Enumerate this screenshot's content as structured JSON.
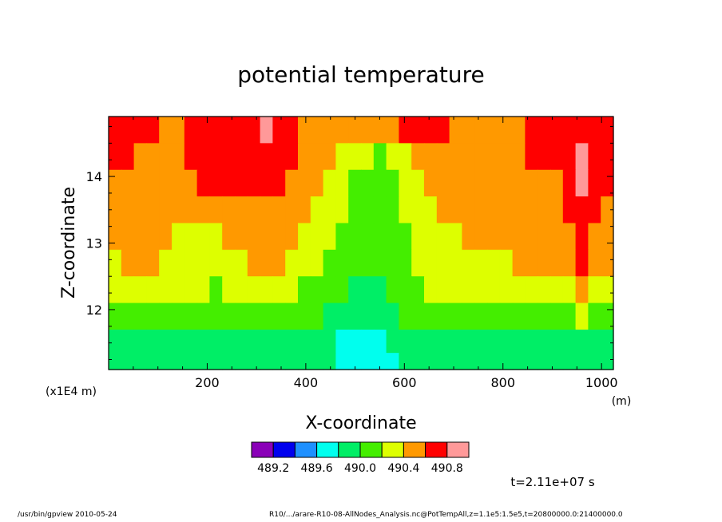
{
  "chart_data": {
    "type": "heatmap",
    "title": "potential temperature",
    "xlabel": "X-coordinate",
    "ylabel": "Z-coordinate",
    "x_unit": "(m)",
    "y_unit": "(x1E4 m)",
    "xlim": [
      0,
      1024
    ],
    "ylim": [
      11.1,
      14.9
    ],
    "x_ticks": [
      "200",
      "400",
      "600",
      "800",
      "1000"
    ],
    "y_ticks": [
      "12",
      "13",
      "14"
    ],
    "colorbar": {
      "levels": [
        {
          "color": "#8a00b8"
        },
        {
          "color": "#0000ee"
        },
        {
          "color": "#1e90ff"
        },
        {
          "color": "#00ffee"
        },
        {
          "color": "#00ee66"
        },
        {
          "color": "#44ee00"
        },
        {
          "color": "#ddff00"
        },
        {
          "color": "#ff9900"
        },
        {
          "color": "#ff0000"
        },
        {
          "color": "#ff9999"
        }
      ],
      "labels": [
        "489.2",
        "489.6",
        "490.0",
        "490.4",
        "490.8"
      ]
    },
    "approx_field_rows": [
      {
        "z": 14.7,
        "levels": [
          8,
          8,
          8,
          8,
          7,
          7,
          8,
          8,
          8,
          8,
          8,
          8,
          9,
          8,
          8,
          7,
          7,
          7,
          7,
          7,
          7,
          7,
          7,
          8,
          8,
          8,
          8,
          7,
          7,
          7,
          7,
          7,
          7,
          8,
          8,
          8,
          8,
          8,
          8,
          8
        ]
      },
      {
        "z": 14.3,
        "levels": [
          8,
          8,
          7,
          7,
          7,
          7,
          8,
          8,
          8,
          8,
          8,
          8,
          8,
          8,
          8,
          7,
          7,
          7,
          6,
          6,
          6,
          5,
          6,
          6,
          7,
          7,
          7,
          7,
          7,
          7,
          7,
          7,
          7,
          8,
          8,
          8,
          8,
          9,
          8,
          8
        ]
      },
      {
        "z": 13.9,
        "levels": [
          7,
          7,
          7,
          7,
          7,
          7,
          7,
          8,
          8,
          8,
          8,
          8,
          8,
          8,
          7,
          7,
          7,
          6,
          6,
          5,
          5,
          5,
          5,
          6,
          6,
          7,
          7,
          7,
          7,
          7,
          7,
          7,
          7,
          7,
          7,
          7,
          8,
          9,
          8,
          8
        ]
      },
      {
        "z": 13.5,
        "levels": [
          7,
          7,
          7,
          7,
          7,
          7,
          7,
          7,
          7,
          7,
          7,
          7,
          7,
          7,
          7,
          7,
          6,
          6,
          6,
          5,
          5,
          5,
          5,
          6,
          6,
          6,
          7,
          7,
          7,
          7,
          7,
          7,
          7,
          7,
          7,
          7,
          8,
          8,
          8,
          7
        ]
      },
      {
        "z": 13.1,
        "levels": [
          7,
          7,
          7,
          7,
          7,
          6,
          6,
          6,
          6,
          7,
          7,
          7,
          7,
          7,
          7,
          6,
          6,
          6,
          5,
          5,
          5,
          5,
          5,
          5,
          6,
          6,
          6,
          6,
          7,
          7,
          7,
          7,
          7,
          7,
          7,
          7,
          7,
          8,
          7,
          7
        ]
      },
      {
        "z": 12.7,
        "levels": [
          6,
          7,
          7,
          7,
          6,
          6,
          6,
          6,
          6,
          6,
          6,
          7,
          7,
          7,
          6,
          6,
          6,
          5,
          5,
          5,
          5,
          5,
          5,
          5,
          6,
          6,
          6,
          6,
          6,
          6,
          6,
          6,
          7,
          7,
          7,
          7,
          7,
          8,
          7,
          7
        ]
      },
      {
        "z": 12.3,
        "levels": [
          6,
          6,
          6,
          6,
          6,
          6,
          6,
          6,
          5,
          6,
          6,
          6,
          6,
          6,
          6,
          5,
          5,
          5,
          5,
          4,
          4,
          4,
          5,
          5,
          5,
          6,
          6,
          6,
          6,
          6,
          6,
          6,
          6,
          6,
          6,
          6,
          6,
          7,
          6,
          6
        ]
      },
      {
        "z": 11.9,
        "levels": [
          5,
          5,
          5,
          5,
          5,
          5,
          5,
          5,
          5,
          5,
          5,
          5,
          5,
          5,
          5,
          5,
          5,
          4,
          4,
          4,
          4,
          4,
          4,
          5,
          5,
          5,
          5,
          5,
          5,
          5,
          5,
          5,
          5,
          5,
          5,
          5,
          5,
          6,
          5,
          5
        ]
      },
      {
        "z": 11.5,
        "levels": [
          4,
          4,
          4,
          4,
          4,
          4,
          4,
          4,
          4,
          4,
          4,
          4,
          4,
          4,
          4,
          4,
          4,
          4,
          3,
          3,
          3,
          3,
          4,
          4,
          4,
          4,
          4,
          4,
          4,
          4,
          4,
          4,
          4,
          4,
          4,
          4,
          4,
          4,
          4,
          4
        ]
      },
      {
        "z": 11.2,
        "levels": [
          4,
          4,
          4,
          4,
          4,
          4,
          4,
          4,
          4,
          4,
          4,
          4,
          4,
          4,
          4,
          4,
          4,
          4,
          3,
          3,
          3,
          3,
          3,
          4,
          4,
          4,
          4,
          4,
          4,
          4,
          4,
          4,
          4,
          4,
          4,
          4,
          4,
          4,
          4,
          4
        ]
      }
    ]
  },
  "time_label": "t=2.11e+07 s",
  "footer": {
    "left": "/usr/bin/gpview   2010-05-24",
    "right": "R10/.../arare-R10-08-AllNodes_Analysis.nc@PotTempAll,z=1.1e5:1.5e5,t=20800000.0:21400000.0"
  }
}
